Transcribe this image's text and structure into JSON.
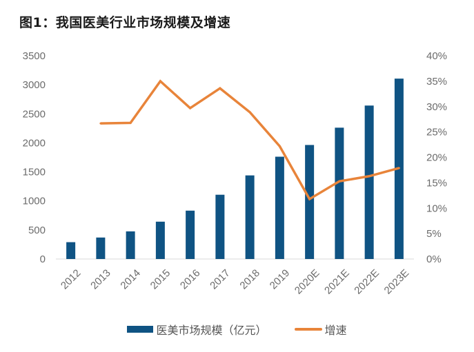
{
  "chart_data": {
    "type": "bar",
    "title": "图1：我国医美行业市场规模及增速",
    "categories": [
      "2012",
      "2013",
      "2014",
      "2015",
      "2016",
      "2017",
      "2018",
      "2019",
      "2020E",
      "2021E",
      "2022E",
      "2023E"
    ],
    "series": [
      {
        "name": "医美市场规模（亿元）",
        "type": "bar",
        "axis": "left",
        "color": "#0f5383",
        "values": [
          290,
          370,
          476,
          643,
          833,
          1107,
          1440,
          1762,
          1964,
          2262,
          2643,
          3107
        ]
      },
      {
        "name": "增速",
        "type": "line",
        "axis": "right",
        "color": "#e8843a",
        "values": [
          null,
          26.7,
          26.8,
          35.0,
          29.7,
          33.6,
          28.9,
          22.2,
          11.8,
          15.3,
          16.3,
          17.9
        ]
      }
    ],
    "y_left": {
      "range": [
        0,
        3500
      ],
      "ticks": [
        "0",
        "500",
        "1000",
        "1500",
        "2000",
        "2500",
        "3000",
        "3500"
      ]
    },
    "y_right": {
      "range": [
        0,
        40
      ],
      "ticks": [
        "0%",
        "5%",
        "10%",
        "15%",
        "20%",
        "25%",
        "30%",
        "35%",
        "40%"
      ]
    },
    "grid": false,
    "legend_position": "bottom"
  }
}
